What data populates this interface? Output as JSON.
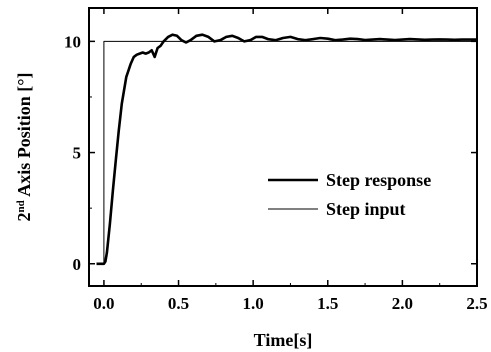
{
  "chart_data": {
    "type": "line",
    "title": "",
    "xlabel": "Time[s]",
    "ylabel": {
      "prefix": "2",
      "superscript": "nd",
      "rest": " Axis Position [°]"
    },
    "xlim": [
      -0.1,
      2.5
    ],
    "ylim": [
      -1,
      11.5
    ],
    "x_ticks": [
      {
        "value": 0.0,
        "label": "0.0"
      },
      {
        "value": 0.5,
        "label": "0.5"
      },
      {
        "value": 1.0,
        "label": "1.0"
      },
      {
        "value": 1.5,
        "label": "1.5"
      },
      {
        "value": 2.0,
        "label": "2.0"
      },
      {
        "value": 2.5,
        "label": "2.5"
      }
    ],
    "y_ticks": [
      {
        "value": 0,
        "label": "0"
      },
      {
        "value": 5,
        "label": "5"
      },
      {
        "value": 10,
        "label": "10"
      }
    ],
    "grid": false,
    "legend_position": "center-right",
    "series": [
      {
        "name": "Step response",
        "color": "#000000",
        "style": "thick",
        "x": [
          -0.05,
          0.0,
          0.01,
          0.02,
          0.04,
          0.06,
          0.08,
          0.1,
          0.12,
          0.15,
          0.18,
          0.2,
          0.22,
          0.24,
          0.26,
          0.28,
          0.3,
          0.32,
          0.34,
          0.36,
          0.38,
          0.4,
          0.43,
          0.46,
          0.49,
          0.52,
          0.55,
          0.58,
          0.62,
          0.66,
          0.7,
          0.74,
          0.78,
          0.82,
          0.86,
          0.9,
          0.94,
          0.98,
          1.02,
          1.06,
          1.1,
          1.15,
          1.2,
          1.25,
          1.3,
          1.35,
          1.4,
          1.45,
          1.5,
          1.55,
          1.6,
          1.65,
          1.7,
          1.75,
          1.8,
          1.85,
          1.9,
          1.95,
          2.0,
          2.05,
          2.1,
          2.15,
          2.2,
          2.25,
          2.3,
          2.35,
          2.4,
          2.45,
          2.5
        ],
        "y": [
          0.0,
          0.0,
          0.1,
          0.5,
          1.8,
          3.3,
          4.7,
          6.0,
          7.2,
          8.4,
          9.0,
          9.3,
          9.4,
          9.45,
          9.5,
          9.45,
          9.5,
          9.6,
          9.3,
          9.7,
          9.8,
          10.0,
          10.2,
          10.3,
          10.25,
          10.05,
          9.95,
          10.05,
          10.25,
          10.3,
          10.2,
          10.0,
          10.05,
          10.2,
          10.25,
          10.15,
          10.0,
          10.05,
          10.2,
          10.2,
          10.1,
          10.05,
          10.15,
          10.2,
          10.1,
          10.05,
          10.1,
          10.15,
          10.12,
          10.05,
          10.08,
          10.12,
          10.1,
          10.06,
          10.08,
          10.1,
          10.08,
          10.06,
          10.08,
          10.1,
          10.09,
          10.07,
          10.08,
          10.09,
          10.08,
          10.07,
          10.08,
          10.08,
          10.08
        ]
      },
      {
        "name": "Step input",
        "color": "#000000",
        "style": "thin",
        "x": [
          -0.05,
          0.0,
          0.0,
          2.5
        ],
        "y": [
          0,
          0,
          10,
          10
        ]
      }
    ]
  }
}
